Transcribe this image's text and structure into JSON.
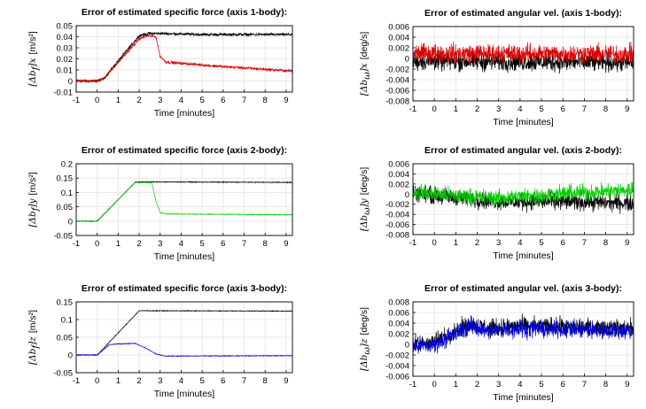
{
  "chart_data": [
    {
      "type": "line",
      "title": "Error of estimated specific force (axis 1-body):",
      "xlabel": "Time [minutes]",
      "ylabel_math": "[Δb",
      "ylabel_sub": "f",
      "ylabel_axis": "]x",
      "ylabel_unit": "[m/s²]",
      "xlim": [
        -1,
        9.3
      ],
      "ylim": [
        -0.01,
        0.05
      ],
      "xticks": [
        "-1",
        "0",
        "1",
        "2",
        "3",
        "4",
        "5",
        "6",
        "7",
        "8",
        "9"
      ],
      "yticks": [
        "-0.01",
        "0",
        "0.01",
        "0.02",
        "0.03",
        "0.04",
        "0.05"
      ],
      "grid": true,
      "series": [
        {
          "color": "#000000",
          "noise": 0.0018,
          "x": [
            -1,
            0,
            0.3,
            2,
            2.5,
            3,
            5,
            9.3
          ],
          "y": [
            0.0,
            0.0,
            0.002,
            0.041,
            0.043,
            0.043,
            0.042,
            0.042
          ]
        },
        {
          "color": "#dd0000",
          "noise": 0.0018,
          "x": [
            -1,
            0,
            0.3,
            2,
            2.4,
            2.8,
            3.0,
            3.3,
            4,
            6,
            9.3
          ],
          "y": [
            0.0,
            0.0,
            0.002,
            0.038,
            0.041,
            0.04,
            0.022,
            0.017,
            0.016,
            0.013,
            0.009
          ]
        }
      ]
    },
    {
      "type": "line",
      "title": "Error of estimated angular vel. (axis 1-body):",
      "xlabel": "Time [minutes]",
      "ylabel_math": "[Δb",
      "ylabel_sub": "ω",
      "ylabel_axis": "]x",
      "ylabel_unit": "[deg/s]",
      "xlim": [
        -1,
        9.3
      ],
      "ylim": [
        -0.008,
        0.006
      ],
      "xticks": [
        "-1",
        "0",
        "1",
        "2",
        "3",
        "4",
        "5",
        "6",
        "7",
        "8",
        "9"
      ],
      "yticks": [
        "-0.008",
        "-0.006",
        "-0.004",
        "-0.002",
        "0",
        "0.002",
        "0.004",
        "0.006"
      ],
      "grid": true,
      "series": [
        {
          "color": "#000000",
          "noise": 0.0024,
          "x": [
            -1,
            9.3
          ],
          "y": [
            -0.0005,
            -0.0008
          ]
        },
        {
          "color": "#dd0000",
          "noise": 0.0024,
          "x": [
            -1,
            9.3
          ],
          "y": [
            0.001,
            0.0008
          ]
        }
      ]
    },
    {
      "type": "line",
      "title": "Error of estimated specific force (axis 2-body):",
      "xlabel": "Time [minutes]",
      "ylabel_math": "[Δb",
      "ylabel_sub": "f",
      "ylabel_axis": "]y",
      "ylabel_unit": "[m/s²]",
      "xlim": [
        -1,
        9.3
      ],
      "ylim": [
        -0.05,
        0.2
      ],
      "xticks": [
        "-1",
        "0",
        "1",
        "2",
        "3",
        "4",
        "5",
        "6",
        "7",
        "8",
        "9"
      ],
      "yticks": [
        "-0.05",
        "0",
        "0.05",
        "0.1",
        "0.15",
        "0.2"
      ],
      "grid": true,
      "series": [
        {
          "color": "#000000",
          "noise": 0.002,
          "x": [
            -1,
            0,
            1.8,
            2.1,
            9.3
          ],
          "y": [
            0.0,
            0.0,
            0.135,
            0.137,
            0.135
          ]
        },
        {
          "color": "#00cc00",
          "noise": 0.002,
          "x": [
            -1,
            0,
            1.8,
            2.6,
            2.8,
            3.0,
            3.3,
            9.3
          ],
          "y": [
            0.0,
            0.0,
            0.135,
            0.134,
            0.07,
            0.03,
            0.025,
            0.022
          ]
        }
      ]
    },
    {
      "type": "line",
      "title": "Error of estimated angular vel. (axis 2-body):",
      "xlabel": "Time [minutes]",
      "ylabel_math": "[Δb",
      "ylabel_sub": "ω",
      "ylabel_axis": "]y",
      "ylabel_unit": "[deg/s]",
      "xlim": [
        -1,
        9.3
      ],
      "ylim": [
        -0.008,
        0.006
      ],
      "xticks": [
        "-1",
        "0",
        "1",
        "2",
        "3",
        "4",
        "5",
        "6",
        "7",
        "8",
        "9"
      ],
      "yticks": [
        "-0.008",
        "-0.006",
        "-0.004",
        "-0.002",
        "0",
        "0.002",
        "0.004",
        "0.006"
      ],
      "grid": true,
      "series": [
        {
          "color": "#000000",
          "noise": 0.0022,
          "x": [
            -1,
            1,
            3,
            6,
            9.3
          ],
          "y": [
            0.0003,
            -0.0007,
            -0.0015,
            -0.0015,
            -0.0018
          ]
        },
        {
          "color": "#00cc00",
          "noise": 0.0022,
          "x": [
            -1,
            1,
            3,
            6,
            9.3
          ],
          "y": [
            0.0005,
            -0.0004,
            -0.0008,
            0.0001,
            0.0008
          ]
        }
      ]
    },
    {
      "type": "line",
      "title": "Error of estimated specific force (axis 3-body):",
      "xlabel": "Time [minutes]",
      "ylabel_math": "[Δb",
      "ylabel_sub": "f",
      "ylabel_axis": "]z",
      "ylabel_unit": "[m/s²]",
      "xlim": [
        -1,
        9.3
      ],
      "ylim": [
        -0.05,
        0.15
      ],
      "xticks": [
        "-1",
        "0",
        "1",
        "2",
        "3",
        "4",
        "5",
        "6",
        "7",
        "8",
        "9"
      ],
      "yticks": [
        "-0.05",
        "0",
        "0.05",
        "0.1",
        "0.15"
      ],
      "grid": true,
      "series": [
        {
          "color": "#000000",
          "noise": 0.0015,
          "x": [
            -1,
            0,
            2.0,
            2.3,
            9.3
          ],
          "y": [
            0.0,
            0.0,
            0.125,
            0.125,
            0.124
          ]
        },
        {
          "color": "#0000dd",
          "noise": 0.0015,
          "x": [
            -1,
            0,
            0.6,
            1.8,
            2.3,
            2.8,
            3.2,
            9.3
          ],
          "y": [
            0.0,
            0.0,
            0.03,
            0.033,
            0.02,
            0.003,
            -0.003,
            -0.002
          ]
        }
      ]
    },
    {
      "type": "line",
      "title": "Error of estimated angular vel. (axis 3-body):",
      "xlabel": "Time [minutes]",
      "ylabel_math": "[Δb",
      "ylabel_sub": "ω",
      "ylabel_axis": "]z",
      "ylabel_unit": "[deg/s]",
      "xlim": [
        -1,
        9.3
      ],
      "ylim": [
        -0.006,
        0.008
      ],
      "xticks": [
        "-1",
        "0",
        "1",
        "2",
        "3",
        "4",
        "5",
        "6",
        "7",
        "8",
        "9"
      ],
      "yticks": [
        "-0.006",
        "-0.004",
        "-0.002",
        "0",
        "0.002",
        "0.004",
        "0.006",
        "0.008"
      ],
      "grid": true,
      "series": [
        {
          "color": "#000000",
          "noise": 0.0022,
          "x": [
            -1,
            0,
            1.7,
            2.5,
            4,
            9.3
          ],
          "y": [
            0.0,
            0.0005,
            0.004,
            0.003,
            0.0035,
            0.003
          ]
        },
        {
          "color": "#0000dd",
          "noise": 0.0022,
          "x": [
            -1,
            0,
            1.7,
            2.5,
            4,
            9.3
          ],
          "y": [
            -0.0005,
            0.0,
            0.0035,
            0.0025,
            0.003,
            0.0025
          ]
        }
      ]
    }
  ]
}
